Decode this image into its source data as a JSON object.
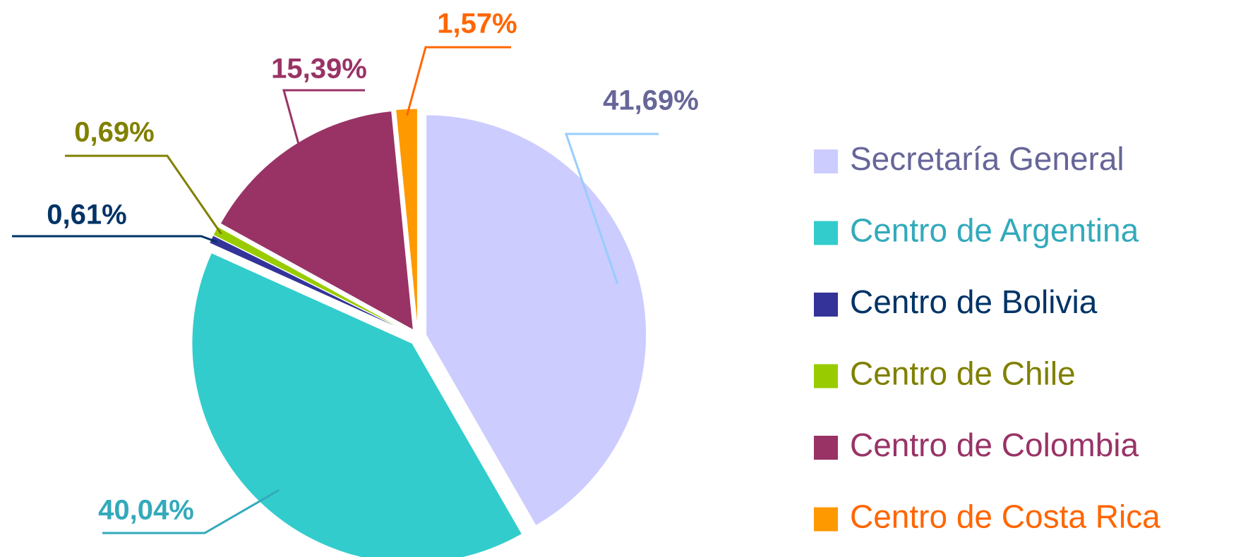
{
  "chart_data": {
    "type": "pie",
    "categories": [
      "Secretaría General",
      "Centro de Argentina",
      "Centro de Bolivia",
      "Centro de Chile",
      "Centro de Colombia",
      "Centro de Costa Rica"
    ],
    "values": [
      41.69,
      40.04,
      0.61,
      0.69,
      15.39,
      1.57
    ],
    "value_labels": [
      "41,69%",
      "40,04%",
      "0,61%",
      "0,69%",
      "15,39%",
      "1,57%"
    ],
    "colors": [
      "#ccccff",
      "#33cccc",
      "#333399",
      "#99cc00",
      "#993366",
      "#ff9900"
    ],
    "label_colors": [
      "#666699",
      "#33aabb",
      "#003366",
      "#808000",
      "#993366",
      "#ff6600"
    ],
    "legend": "right"
  }
}
